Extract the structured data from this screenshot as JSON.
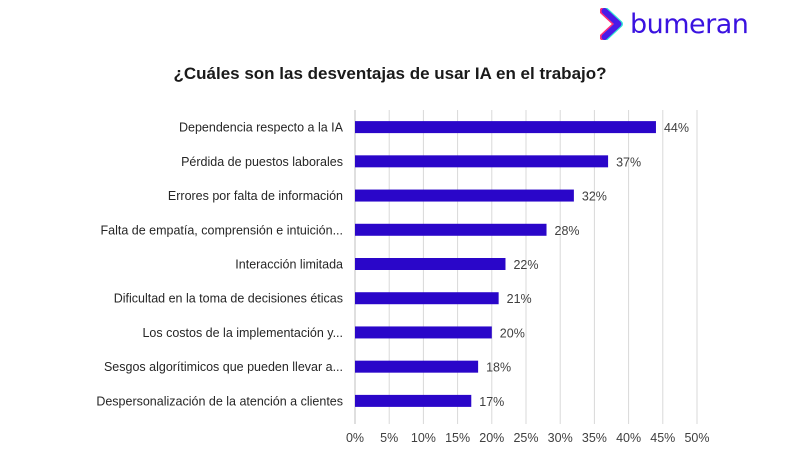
{
  "brand": {
    "name": "bumeran",
    "colors": {
      "primary": "#3a12e0",
      "accent_pink": "#ff2d7a",
      "accent_cyan": "#2ee6d6"
    }
  },
  "chart_data": {
    "type": "bar",
    "orientation": "horizontal",
    "title": "¿Cuáles son las desventajas de usar IA en el trabajo?",
    "categories": [
      "Dependencia  respecto a la IA",
      "Pérdida de puestos laborales",
      "Errores por falta de información",
      "Falta de empatía, comprensión e intuición...",
      "Interacción limitada",
      "Dificultad en la toma de decisiones éticas",
      "Los costos de la implementación y...",
      "Sesgos algorítimicos que pueden llevar a...",
      "Despersonalización de la atención a clientes"
    ],
    "values": [
      44,
      37,
      32,
      28,
      22,
      21,
      20,
      18,
      17
    ],
    "value_labels": [
      "44%",
      "37%",
      "32%",
      "28%",
      "22%",
      "21%",
      "20%",
      "18%",
      "17%"
    ],
    "xlim": [
      0,
      50
    ],
    "xticks": [
      0,
      5,
      10,
      15,
      20,
      25,
      30,
      35,
      40,
      45,
      50
    ],
    "xtick_labels": [
      "0%",
      "5%",
      "10%",
      "15%",
      "20%",
      "25%",
      "30%",
      "35%",
      "40%",
      "45%",
      "50%"
    ],
    "xlabel": "",
    "ylabel": "",
    "grid": true,
    "legend": "none",
    "bar_color": "#2a06c9"
  }
}
